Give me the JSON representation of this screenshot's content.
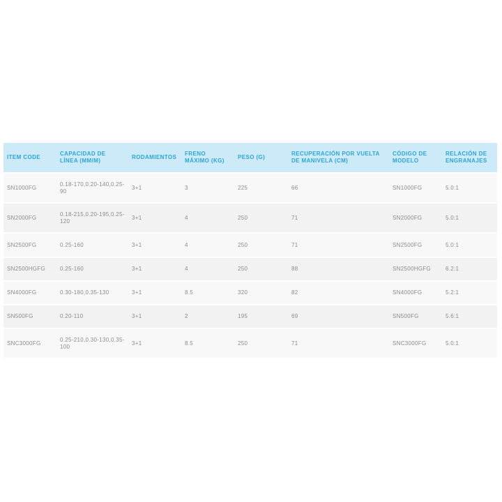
{
  "table": {
    "headers": [
      "ITEM CODE",
      "CAPACIDAD DE LÍNEA (MM/M)",
      "RODAMIENTOS",
      "FRENO MÁXIMO (KG)",
      "PESO (G)",
      "RECUPERACIÓN POR VUELTA DE MANIVELA (CM)",
      "CÓDIGO DE MODELO",
      "RELACIÓN DE ENGRANAJES"
    ],
    "rows": [
      [
        "SN1000FG",
        "0.18-170,0.20-140,0.25-90",
        "3+1",
        "3",
        "225",
        "66",
        "SN1000FG",
        "5.0:1"
      ],
      [
        "SN2000FG",
        "0.18-215,0.20-195,0.25-120",
        "3+1",
        "4",
        "250",
        "71",
        "SN2000FG",
        "5.0:1"
      ],
      [
        "SN2500FG",
        "0.25-160",
        "3+1",
        "4",
        "250",
        "71",
        "SN2500FG",
        "5.0:1"
      ],
      [
        "SN2500HGFG",
        "0.25-160",
        "3+1",
        "4",
        "250",
        "88",
        "SN2500HGFG",
        "6.2:1"
      ],
      [
        "SN4000FG",
        "0.30-180,0.35-130",
        "3+1",
        "8.5",
        "320",
        "82",
        "SN4000FG",
        "5.2:1"
      ],
      [
        "SN500FG",
        "0.20-110",
        "3+1",
        "2",
        "195",
        "69",
        "SN500FG",
        "5.6:1"
      ],
      [
        "SNC3000FG",
        "0.25-210,0.30-130,0.35-100",
        "3+1",
        "8.5",
        "250",
        "71",
        "SNC3000FG",
        "5.0:1"
      ]
    ]
  },
  "colors": {
    "header_bg": "#cdeaf8",
    "header_text": "#2aa5d6",
    "cell_text": "#8a8a8a"
  }
}
